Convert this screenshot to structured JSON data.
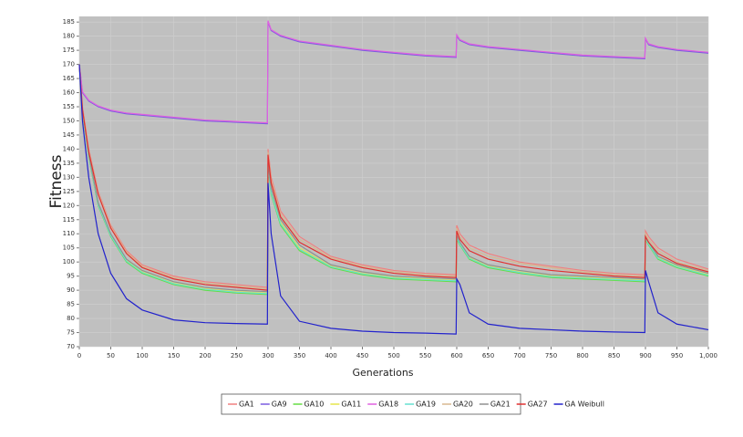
{
  "chart_data": {
    "type": "line",
    "xlabel": "Generations",
    "ylabel": "Fitness",
    "x": [
      0,
      5,
      15,
      30,
      50,
      75,
      100,
      150,
      200,
      250,
      299,
      300,
      305,
      320,
      350,
      400,
      450,
      500,
      550,
      599,
      600,
      605,
      620,
      650,
      700,
      750,
      800,
      850,
      899,
      900,
      905,
      920,
      950,
      1000
    ],
    "xlim": [
      0,
      1000
    ],
    "xticks": [
      0,
      50,
      100,
      150,
      200,
      250,
      300,
      350,
      400,
      450,
      500,
      550,
      600,
      650,
      700,
      750,
      800,
      850,
      900,
      950,
      {
        "value": 1000,
        "label": "1,000"
      }
    ],
    "ylim": [
      70,
      187
    ],
    "yticks": [
      70,
      75,
      80,
      85,
      90,
      95,
      100,
      105,
      110,
      115,
      120,
      125,
      130,
      135,
      140,
      145,
      150,
      155,
      160,
      165,
      170,
      175,
      180,
      185
    ],
    "grid": true,
    "legend": "bottom",
    "series": [
      {
        "name": "GA1",
        "color": "#f08080",
        "values": [
          170,
          155,
          140,
          125,
          113,
          104,
          99,
          95,
          93,
          92,
          91,
          140,
          130,
          118,
          109,
          102,
          99,
          97,
          96,
          95.5,
          113,
          110,
          106,
          103,
          100,
          98.5,
          97,
          96,
          95.5,
          111,
          109,
          105,
          101,
          97.5
        ]
      },
      {
        "name": "GA9",
        "color": "#7a5ce0",
        "values": [
          170,
          160,
          157,
          155,
          153.5,
          152.5,
          152,
          151,
          150,
          149.5,
          149,
          185,
          182,
          180,
          178,
          176.5,
          175,
          174,
          173,
          172.5,
          180,
          178.5,
          177,
          176,
          175,
          174,
          173,
          172.5,
          172,
          179,
          177,
          176,
          175,
          174
        ]
      },
      {
        "name": "GA10",
        "color": "#66dd44",
        "values": [
          170,
          153,
          137,
          120,
          109,
          100,
          96,
          92,
          90,
          89,
          88.5,
          133,
          124,
          113,
          104,
          98,
          95.5,
          94,
          93.5,
          93,
          108,
          106,
          101,
          98,
          96,
          94.5,
          94,
          93.5,
          93,
          108,
          106,
          101,
          98,
          95
        ]
      },
      {
        "name": "GA11",
        "color": "#e6e64a",
        "values": [
          170,
          153.5,
          137.5,
          120.5,
          109.5,
          100.5,
          96.5,
          92.5,
          90.5,
          89.5,
          89,
          134,
          125,
          114,
          105,
          98.5,
          96,
          94.5,
          94,
          93.5,
          109,
          106.5,
          101.5,
          98.5,
          96.5,
          95,
          94.5,
          94,
          93.5,
          108.5,
          106.5,
          101.5,
          98.5,
          95.5
        ]
      },
      {
        "name": "GA18",
        "color": "#e060e0",
        "values": [
          170,
          160.3,
          157.3,
          155.3,
          153.8,
          152.8,
          152.3,
          151.3,
          150.3,
          149.8,
          149.3,
          185.5,
          182.3,
          180.3,
          178.3,
          176.8,
          175.3,
          174.3,
          173.3,
          172.8,
          180.5,
          178.8,
          177.3,
          176.3,
          175.3,
          174.3,
          173.3,
          172.8,
          172.3,
          179.3,
          177.3,
          176.3,
          175.3,
          174.3
        ]
      },
      {
        "name": "GA19",
        "color": "#66e0d0",
        "values": [
          170,
          153.3,
          137.3,
          120.3,
          109.3,
          100.3,
          96.3,
          92.3,
          90.3,
          89.3,
          88.8,
          133.5,
          124.5,
          113.5,
          104.5,
          98.3,
          95.8,
          94.3,
          93.8,
          93.3,
          108.5,
          106.3,
          101.3,
          98.3,
          96.3,
          94.8,
          94.3,
          93.8,
          93.3,
          108.3,
          106.3,
          101.3,
          98.3,
          95.3
        ]
      },
      {
        "name": "GA20",
        "color": "#d8b890",
        "values": [
          170,
          154.5,
          139.5,
          124.5,
          112.5,
          103.5,
          98.5,
          94.5,
          92.5,
          91.5,
          90.5,
          139,
          129,
          117,
          108,
          101.5,
          98.5,
          96.5,
          95.5,
          95,
          112,
          109,
          105,
          102,
          99.5,
          98,
          96.5,
          95.5,
          95,
          110,
          108,
          104,
          100,
          97
        ]
      },
      {
        "name": "GA21",
        "color": "#909090",
        "values": [
          170,
          154,
          138,
          121,
          110,
          101,
          97,
          93,
          91,
          90,
          89.5,
          135,
          126,
          115,
          106,
          99,
          96.5,
          95,
          94.5,
          94,
          109.5,
          107,
          102,
          99,
          97,
          95.5,
          95,
          94.5,
          94,
          109,
          107,
          102,
          99,
          96
        ]
      },
      {
        "name": "GA27",
        "color": "#e03030",
        "values": [
          170,
          154,
          139,
          124,
          112,
          103,
          98,
          94,
          92,
          91,
          90,
          138,
          128,
          116,
          107,
          101,
          98,
          96,
          95,
          94.5,
          111,
          108,
          104,
          101,
          98.5,
          97,
          96,
          95,
          94.5,
          109,
          107,
          103,
          99.5,
          96.5
        ]
      },
      {
        "name": "GA Weibull",
        "color": "#2222cc",
        "values": [
          170,
          150,
          130,
          110,
          96,
          87,
          83,
          79.5,
          78.5,
          78.2,
          78,
          128,
          110,
          88,
          79,
          76.5,
          75.5,
          75,
          74.8,
          74.5,
          94,
          92,
          82,
          78,
          76.5,
          76,
          75.5,
          75.2,
          75,
          97,
          93,
          82,
          78,
          76
        ]
      }
    ]
  }
}
